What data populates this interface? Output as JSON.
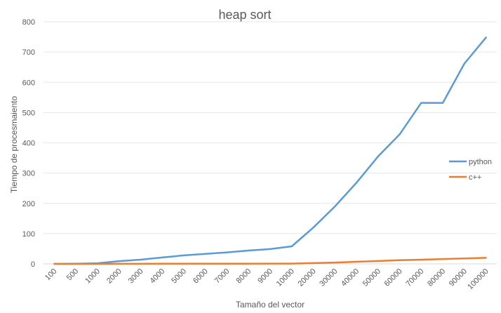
{
  "chart_data": {
    "type": "line",
    "title": "heap sort",
    "xlabel": "Tamaño del vector",
    "ylabel": "Tiempo de procesmaiento",
    "categories": [
      "100",
      "500",
      "1000",
      "2000",
      "3000",
      "4000",
      "5000",
      "6000",
      "7000",
      "8000",
      "9000",
      "10000",
      "20000",
      "30000",
      "40000",
      "50000",
      "60000",
      "70000",
      "80000",
      "90000",
      "100000"
    ],
    "ylim": [
      0,
      800
    ],
    "yticks": [
      0,
      100,
      200,
      300,
      400,
      500,
      600,
      700,
      800
    ],
    "grid": true,
    "legend_position": "right",
    "series": [
      {
        "name": "python",
        "color": "#5B9BD5",
        "values": [
          0.1,
          0.5,
          2,
          9,
          14,
          21,
          28,
          33,
          38,
          44,
          49,
          58,
          120,
          190,
          268,
          355,
          428,
          532,
          532,
          662,
          748
        ]
      },
      {
        "name": "c++",
        "color": "#ED7D31",
        "values": [
          0,
          0,
          0.1,
          0.2,
          0.3,
          0.4,
          0.5,
          0.6,
          0.7,
          0.8,
          0.9,
          1,
          2.5,
          4.5,
          7,
          9.5,
          12,
          14,
          16,
          18,
          20
        ]
      }
    ]
  }
}
